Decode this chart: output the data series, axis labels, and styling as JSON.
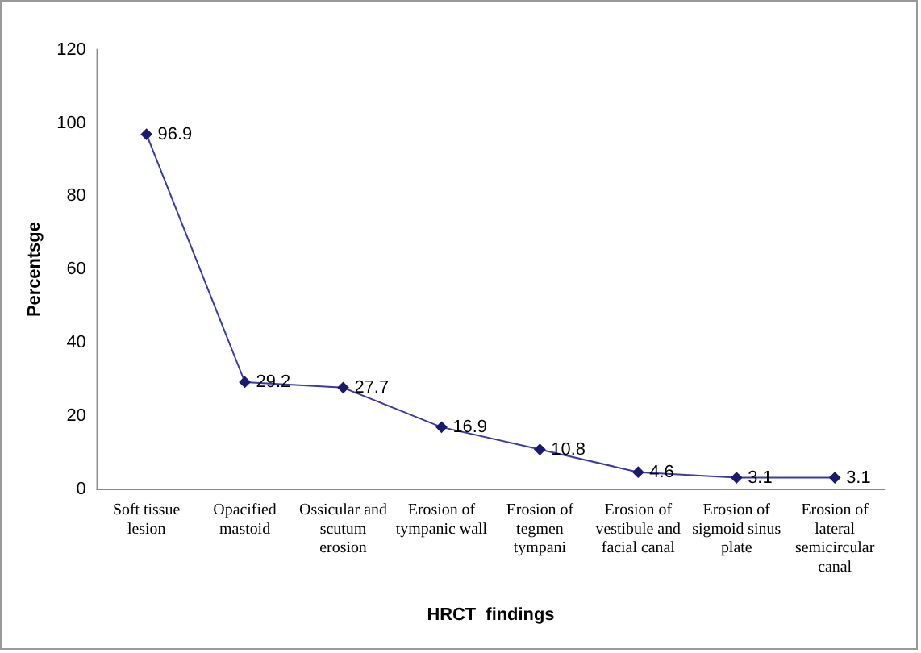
{
  "chart_data": {
    "type": "line",
    "xlabel": "HRCT  findings",
    "ylabel": "Percentsge",
    "categories": [
      "Soft tissue lesion",
      "Opacified mastoid",
      "Ossicular and scutum erosion",
      "Erosion of tympanic wall",
      "Erosion of tegmen tympani",
      "Erosion of vestibule and facial canal",
      "Erosion of sigmoid sinus plate",
      "Erosion of lateral semicircular canal"
    ],
    "series": [
      {
        "color": "#3a3aa0",
        "values": [
          96.9,
          29.2,
          27.7,
          16.9,
          10.8,
          4.6,
          3.1,
          3.1
        ]
      }
    ],
    "ylim": [
      0,
      120
    ],
    "yticks": [
      0,
      20,
      40,
      60,
      80,
      100,
      120
    ],
    "grid": false,
    "legend": false,
    "marker": "diamond",
    "line_style": "solid",
    "data_labels": true
  }
}
